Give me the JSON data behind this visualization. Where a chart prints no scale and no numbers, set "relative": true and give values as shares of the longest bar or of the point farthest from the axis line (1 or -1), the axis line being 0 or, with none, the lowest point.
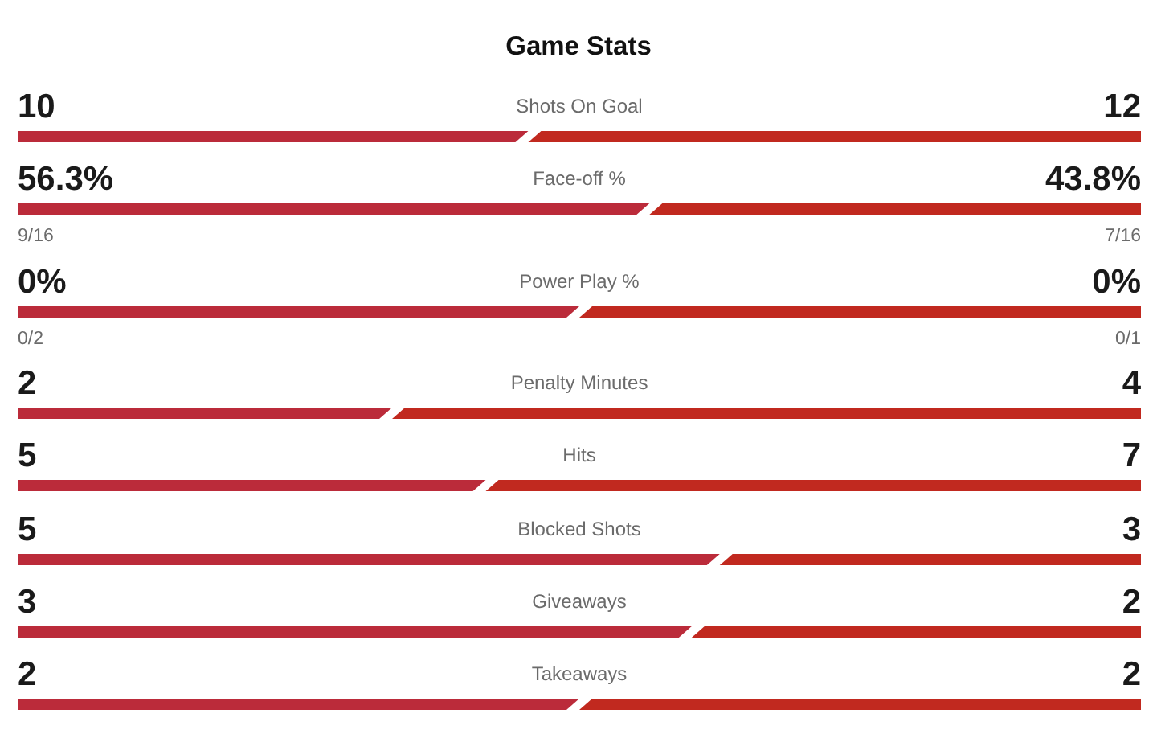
{
  "chart_data": [
    {
      "type": "bar",
      "title": "Game Stats",
      "orientation": "horizontal",
      "stacked": true,
      "categories": [
        "Shots On Goal"
      ],
      "series": [
        {
          "color": "#bb2b3a",
          "values": [
            10
          ],
          "value_labels": [
            "10"
          ]
        },
        {
          "color": "#c1291f",
          "values": [
            12
          ],
          "value_labels": [
            "12"
          ]
        }
      ],
      "tick_labels": "y"
    },
    {
      "type": "bar",
      "orientation": "horizontal",
      "stacked": true,
      "categories": [
        "Face-off %"
      ],
      "series": [
        {
          "color": "#bb2b3a",
          "values": [
            56.3
          ],
          "value_labels": [
            "56.3%"
          ]
        },
        {
          "color": "#c1291f",
          "values": [
            43.8
          ],
          "value_labels": [
            "43.8%"
          ]
        }
      ],
      "tick_labels": "y",
      "annotations": [
        "9/16",
        "7/16"
      ]
    },
    {
      "type": "bar",
      "orientation": "horizontal",
      "stacked": true,
      "relative": true,
      "categories": [
        "Power Play %"
      ],
      "series": [
        {
          "color": "#bb2b3a",
          "values": [
            0.5
          ]
        },
        {
          "color": "#c1291f",
          "values": [
            0.5
          ]
        }
      ],
      "annotations": [
        "0%",
        "0%",
        "0/2",
        "0/1"
      ]
    },
    {
      "type": "bar",
      "orientation": "horizontal",
      "stacked": true,
      "categories": [
        "Penalty Minutes"
      ],
      "series": [
        {
          "color": "#bb2b3a",
          "values": [
            2
          ],
          "value_labels": [
            "2"
          ]
        },
        {
          "color": "#c1291f",
          "values": [
            4
          ],
          "value_labels": [
            "4"
          ]
        }
      ],
      "tick_labels": "y"
    },
    {
      "type": "bar",
      "orientation": "horizontal",
      "stacked": true,
      "categories": [
        "Hits"
      ],
      "series": [
        {
          "color": "#bb2b3a",
          "values": [
            5
          ],
          "value_labels": [
            "5"
          ]
        },
        {
          "color": "#c1291f",
          "values": [
            7
          ],
          "value_labels": [
            "7"
          ]
        }
      ],
      "tick_labels": "y"
    },
    {
      "type": "bar",
      "orientation": "horizontal",
      "stacked": true,
      "categories": [
        "Blocked Shots"
      ],
      "series": [
        {
          "color": "#bb2b3a",
          "values": [
            5
          ],
          "value_labels": [
            "5"
          ]
        },
        {
          "color": "#c1291f",
          "values": [
            3
          ],
          "value_labels": [
            "3"
          ]
        }
      ],
      "tick_labels": "y"
    },
    {
      "type": "bar",
      "orientation": "horizontal",
      "stacked": true,
      "categories": [
        "Giveaways"
      ],
      "series": [
        {
          "color": "#bb2b3a",
          "values": [
            3
          ],
          "value_labels": [
            "3"
          ]
        },
        {
          "color": "#c1291f",
          "values": [
            2
          ],
          "value_labels": [
            "2"
          ]
        }
      ],
      "tick_labels": "y"
    },
    {
      "type": "bar",
      "orientation": "horizontal",
      "stacked": true,
      "categories": [
        "Takeaways"
      ],
      "series": [
        {
          "color": "#bb2b3a",
          "values": [
            2
          ],
          "value_labels": [
            "2"
          ]
        },
        {
          "color": "#c1291f",
          "values": [
            2
          ],
          "value_labels": [
            "2"
          ]
        }
      ],
      "tick_labels": "y"
    }
  ]
}
